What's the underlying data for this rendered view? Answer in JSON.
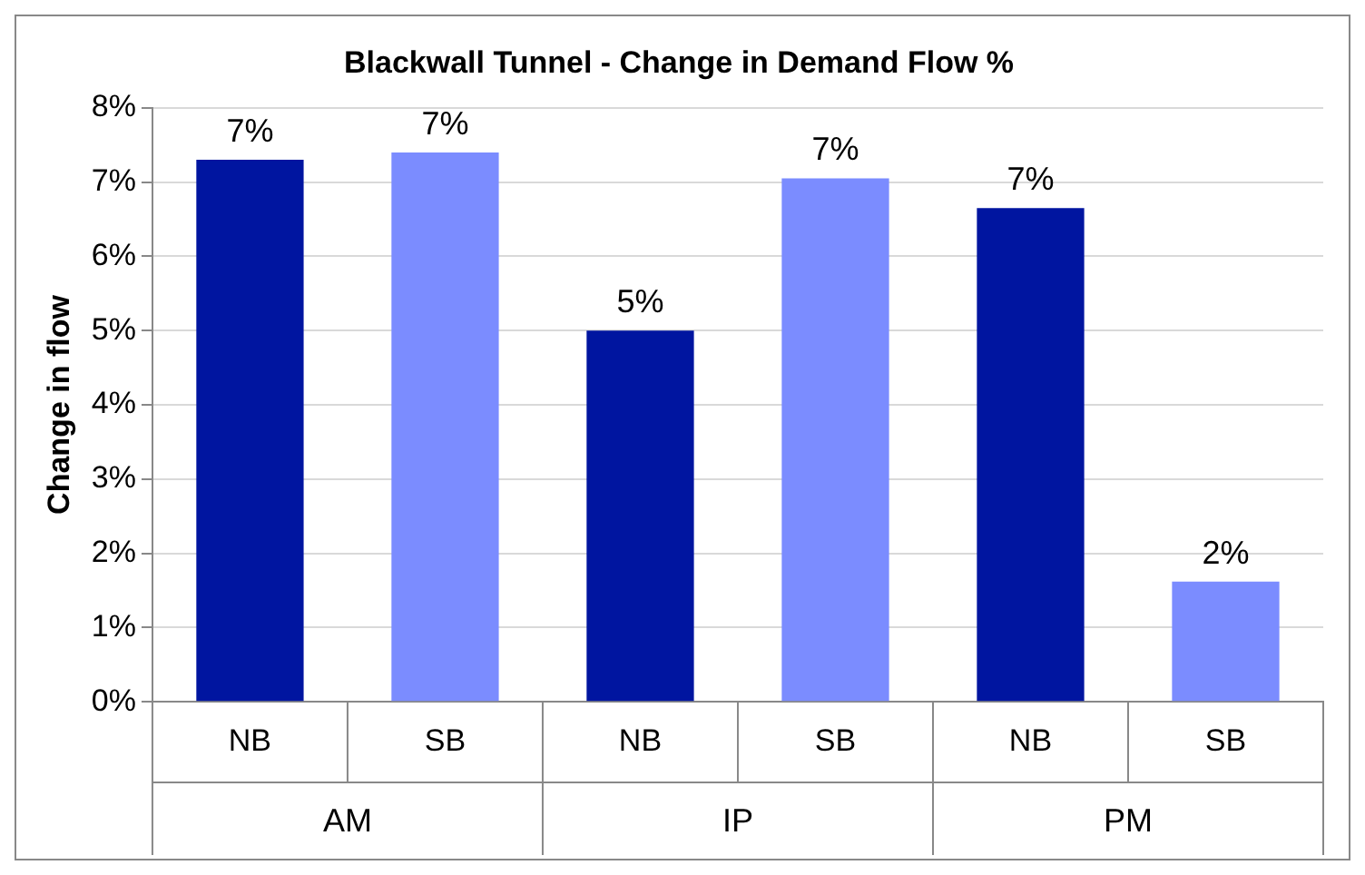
{
  "chart_data": {
    "type": "bar",
    "title": "Blackwall Tunnel - Change in Demand Flow %",
    "ylabel": "Change in flow",
    "categories": [
      "NB",
      "SB",
      "NB",
      "SB",
      "NB",
      "SB"
    ],
    "values": [
      7.3,
      7.4,
      5.0,
      7.05,
      6.65,
      1.62
    ],
    "colors": [
      "#0015a0",
      "#7b8cff",
      "#0015a0",
      "#7b8cff",
      "#0015a0",
      "#7b8cff"
    ],
    "value_labels": [
      "7%",
      "7%",
      "5%",
      "7%",
      "7%",
      "2%"
    ],
    "annotations": [
      "AM",
      "IP",
      "PM"
    ],
    "ylim": [
      0,
      8
    ],
    "yticks": [
      {
        "value": 0,
        "label": "0%"
      },
      {
        "value": 1,
        "label": "1%"
      },
      {
        "value": 2,
        "label": "2%"
      },
      {
        "value": 3,
        "label": "3%"
      },
      {
        "value": 4,
        "label": "4%"
      },
      {
        "value": 5,
        "label": "5%"
      },
      {
        "value": 6,
        "label": "6%"
      },
      {
        "value": 7,
        "label": "7%"
      },
      {
        "value": 8,
        "label": "8%"
      }
    ],
    "grid": "y",
    "legend": false
  }
}
